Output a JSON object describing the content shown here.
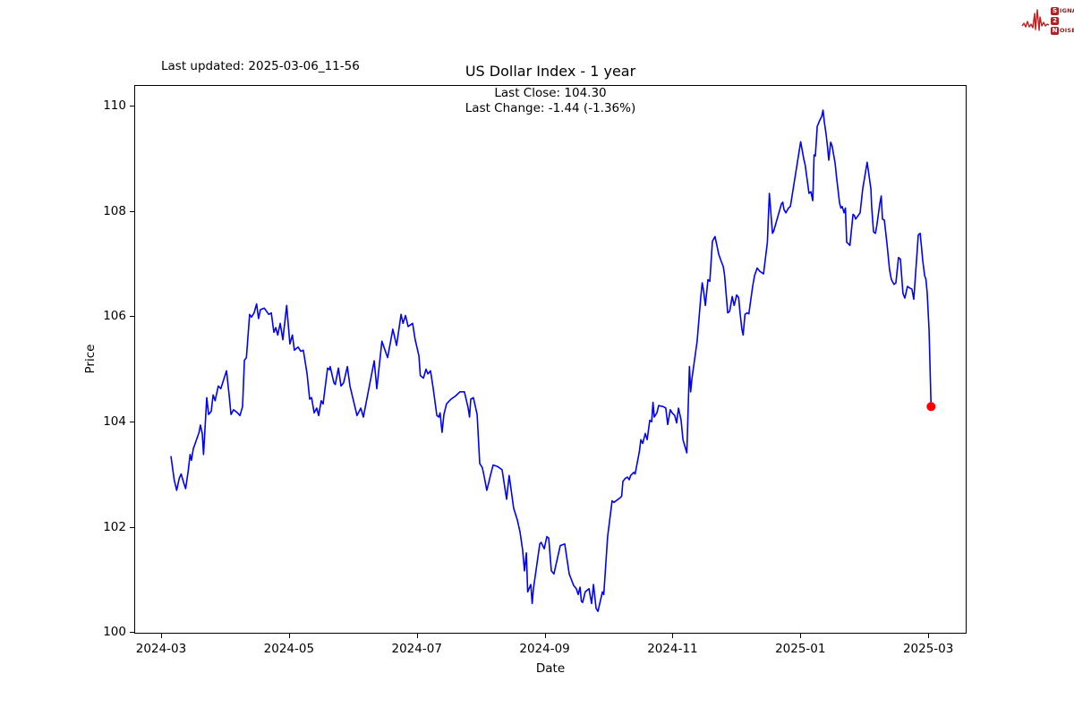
{
  "header": {
    "last_updated": "Last updated: 2025-03-06_11-56"
  },
  "logo": {
    "row1_initial": "S",
    "row1_rest": "IGNAL",
    "row2_initial": "2",
    "row2_rest": "",
    "row3_initial": "N",
    "row3_rest": "OISE",
    "wave_color": "#c41e1e",
    "square_color": "#b32024",
    "text_color": "#8c1a1a"
  },
  "chart_data": {
    "type": "line",
    "title": "US Dollar Index - 1 year",
    "subtitle_line1": "Last Close: 104.30",
    "subtitle_line2": "Last Change: -1.44 (-1.36%)",
    "xlabel": "Date",
    "ylabel": "Price",
    "grid": false,
    "legend": null,
    "x_unit": "months since 2024-03-01",
    "x_tick_labels": [
      "2024-03",
      "2024-05",
      "2024-07",
      "2024-09",
      "2024-11",
      "2025-01",
      "2025-03"
    ],
    "x_tick_positions_months": [
      0,
      2,
      4,
      6,
      8,
      10,
      12
    ],
    "y_tick_labels": [
      "100",
      "102",
      "104",
      "106",
      "108",
      "110"
    ],
    "y_tick_values": [
      100,
      102,
      104,
      106,
      108,
      110
    ],
    "xlim_months": [
      -0.42,
      12.6
    ],
    "ylim": [
      99.97,
      110.39
    ],
    "line_color": "#0000ff",
    "last_point_marker": {
      "x_months": 12.03,
      "price": 104.3,
      "color": "#ff0000"
    },
    "series": [
      {
        "name": "US Dollar Index",
        "color": "#0000ff",
        "points": [
          [
            0.14,
            103.36
          ],
          [
            0.19,
            102.91
          ],
          [
            0.23,
            102.71
          ],
          [
            0.27,
            102.94
          ],
          [
            0.3,
            103.02
          ],
          [
            0.34,
            102.85
          ],
          [
            0.37,
            102.74
          ],
          [
            0.41,
            103.08
          ],
          [
            0.44,
            103.39
          ],
          [
            0.46,
            103.28
          ],
          [
            0.49,
            103.5
          ],
          [
            0.53,
            103.64
          ],
          [
            0.58,
            103.81
          ],
          [
            0.6,
            103.95
          ],
          [
            0.63,
            103.79
          ],
          [
            0.65,
            103.39
          ],
          [
            0.7,
            104.47
          ],
          [
            0.73,
            104.15
          ],
          [
            0.77,
            104.21
          ],
          [
            0.8,
            104.52
          ],
          [
            0.83,
            104.41
          ],
          [
            0.88,
            104.69
          ],
          [
            0.92,
            104.64
          ],
          [
            1.01,
            104.98
          ],
          [
            1.05,
            104.52
          ],
          [
            1.08,
            104.15
          ],
          [
            1.12,
            104.24
          ],
          [
            1.18,
            104.18
          ],
          [
            1.22,
            104.13
          ],
          [
            1.26,
            104.3
          ],
          [
            1.29,
            105.18
          ],
          [
            1.32,
            105.23
          ],
          [
            1.37,
            106.05
          ],
          [
            1.4,
            106.0
          ],
          [
            1.44,
            106.08
          ],
          [
            1.48,
            106.25
          ],
          [
            1.51,
            105.97
          ],
          [
            1.54,
            106.14
          ],
          [
            1.6,
            106.17
          ],
          [
            1.67,
            106.05
          ],
          [
            1.71,
            106.08
          ],
          [
            1.75,
            105.71
          ],
          [
            1.78,
            105.8
          ],
          [
            1.81,
            105.66
          ],
          [
            1.85,
            105.88
          ],
          [
            1.89,
            105.57
          ],
          [
            1.95,
            106.22
          ],
          [
            2.0,
            105.49
          ],
          [
            2.04,
            105.66
          ],
          [
            2.07,
            105.37
          ],
          [
            2.13,
            105.43
          ],
          [
            2.17,
            105.35
          ],
          [
            2.21,
            105.37
          ],
          [
            2.27,
            104.92
          ],
          [
            2.31,
            104.44
          ],
          [
            2.34,
            104.47
          ],
          [
            2.38,
            104.18
          ],
          [
            2.42,
            104.27
          ],
          [
            2.45,
            104.13
          ],
          [
            2.49,
            104.41
          ],
          [
            2.52,
            104.35
          ],
          [
            2.59,
            105.03
          ],
          [
            2.62,
            105.0
          ],
          [
            2.63,
            105.06
          ],
          [
            2.69,
            104.75
          ],
          [
            2.71,
            104.72
          ],
          [
            2.76,
            105.03
          ],
          [
            2.8,
            104.69
          ],
          [
            2.84,
            104.75
          ],
          [
            2.9,
            105.06
          ],
          [
            2.94,
            104.69
          ],
          [
            3.05,
            104.13
          ],
          [
            3.11,
            104.27
          ],
          [
            3.15,
            104.1
          ],
          [
            3.32,
            105.17
          ],
          [
            3.36,
            104.64
          ],
          [
            3.44,
            105.54
          ],
          [
            3.53,
            105.23
          ],
          [
            3.61,
            105.77
          ],
          [
            3.67,
            105.46
          ],
          [
            3.74,
            106.05
          ],
          [
            3.77,
            105.88
          ],
          [
            3.81,
            106.03
          ],
          [
            3.85,
            105.82
          ],
          [
            3.92,
            105.88
          ],
          [
            3.96,
            105.57
          ],
          [
            4.02,
            105.26
          ],
          [
            4.04,
            104.89
          ],
          [
            4.09,
            104.84
          ],
          [
            4.13,
            105.01
          ],
          [
            4.16,
            104.92
          ],
          [
            4.2,
            104.98
          ],
          [
            4.24,
            104.66
          ],
          [
            4.3,
            104.13
          ],
          [
            4.33,
            104.1
          ],
          [
            4.35,
            104.18
          ],
          [
            4.38,
            103.81
          ],
          [
            4.41,
            104.15
          ],
          [
            4.45,
            104.35
          ],
          [
            4.52,
            104.44
          ],
          [
            4.59,
            104.5
          ],
          [
            4.66,
            104.58
          ],
          [
            4.73,
            104.58
          ],
          [
            4.79,
            104.27
          ],
          [
            4.81,
            104.1
          ],
          [
            4.83,
            104.44
          ],
          [
            4.87,
            104.47
          ],
          [
            4.93,
            104.15
          ],
          [
            4.97,
            103.22
          ],
          [
            5.01,
            103.14
          ],
          [
            5.04,
            102.97
          ],
          [
            5.08,
            102.71
          ],
          [
            5.11,
            102.85
          ],
          [
            5.14,
            103.0
          ],
          [
            5.18,
            103.19
          ],
          [
            5.25,
            103.16
          ],
          [
            5.32,
            103.1
          ],
          [
            5.39,
            102.54
          ],
          [
            5.43,
            102.99
          ],
          [
            5.5,
            102.37
          ],
          [
            5.56,
            102.14
          ],
          [
            5.6,
            101.92
          ],
          [
            5.64,
            101.58
          ],
          [
            5.67,
            101.18
          ],
          [
            5.7,
            101.52
          ],
          [
            5.72,
            100.78
          ],
          [
            5.77,
            100.92
          ],
          [
            5.79,
            100.56
          ],
          [
            5.81,
            100.84
          ],
          [
            5.91,
            101.69
          ],
          [
            5.93,
            101.72
          ],
          [
            5.98,
            101.6
          ],
          [
            6.02,
            101.83
          ],
          [
            6.05,
            101.8
          ],
          [
            6.09,
            101.18
          ],
          [
            6.13,
            101.12
          ],
          [
            6.23,
            101.66
          ],
          [
            6.3,
            101.69
          ],
          [
            6.37,
            101.12
          ],
          [
            6.44,
            100.9
          ],
          [
            6.48,
            100.84
          ],
          [
            6.51,
            100.73
          ],
          [
            6.54,
            100.87
          ],
          [
            6.56,
            100.6
          ],
          [
            6.58,
            100.58
          ],
          [
            6.62,
            100.78
          ],
          [
            6.68,
            100.84
          ],
          [
            6.72,
            100.56
          ],
          [
            6.75,
            100.92
          ],
          [
            6.79,
            100.47
          ],
          [
            6.82,
            100.41
          ],
          [
            6.89,
            100.78
          ],
          [
            6.91,
            100.73
          ],
          [
            6.97,
            101.83
          ],
          [
            7.04,
            102.51
          ],
          [
            7.07,
            102.48
          ],
          [
            7.17,
            102.57
          ],
          [
            7.19,
            102.6
          ],
          [
            7.21,
            102.88
          ],
          [
            7.25,
            102.94
          ],
          [
            7.28,
            102.96
          ],
          [
            7.31,
            102.91
          ],
          [
            7.33,
            102.99
          ],
          [
            7.38,
            103.05
          ],
          [
            7.4,
            103.02
          ],
          [
            7.45,
            103.33
          ],
          [
            7.47,
            103.47
          ],
          [
            7.49,
            103.67
          ],
          [
            7.52,
            103.6
          ],
          [
            7.56,
            103.79
          ],
          [
            7.59,
            103.67
          ],
          [
            7.63,
            104.04
          ],
          [
            7.66,
            104.01
          ],
          [
            7.68,
            104.38
          ],
          [
            7.7,
            104.1
          ],
          [
            7.74,
            104.18
          ],
          [
            7.77,
            104.32
          ],
          [
            7.84,
            104.3
          ],
          [
            7.88,
            104.27
          ],
          [
            7.91,
            103.96
          ],
          [
            7.95,
            104.24
          ],
          [
            7.98,
            104.18
          ],
          [
            8.02,
            104.13
          ],
          [
            8.05,
            103.99
          ],
          [
            8.08,
            104.27
          ],
          [
            8.12,
            104.04
          ],
          [
            8.15,
            103.67
          ],
          [
            8.21,
            103.42
          ],
          [
            8.25,
            105.06
          ],
          [
            8.27,
            104.58
          ],
          [
            8.29,
            104.83
          ],
          [
            8.37,
            105.54
          ],
          [
            8.43,
            106.4
          ],
          [
            8.45,
            106.65
          ],
          [
            8.47,
            106.51
          ],
          [
            8.5,
            106.22
          ],
          [
            8.54,
            106.71
          ],
          [
            8.57,
            106.68
          ],
          [
            8.61,
            107.44
          ],
          [
            8.65,
            107.53
          ],
          [
            8.71,
            107.19
          ],
          [
            8.75,
            107.05
          ],
          [
            8.78,
            106.96
          ],
          [
            8.8,
            106.79
          ],
          [
            8.85,
            106.08
          ],
          [
            8.88,
            106.11
          ],
          [
            8.92,
            106.39
          ],
          [
            8.95,
            106.22
          ],
          [
            8.99,
            106.42
          ],
          [
            9.02,
            106.37
          ],
          [
            9.04,
            106.11
          ],
          [
            9.07,
            105.77
          ],
          [
            9.09,
            105.66
          ],
          [
            9.12,
            106.05
          ],
          [
            9.15,
            106.08
          ],
          [
            9.18,
            106.06
          ],
          [
            9.24,
            106.59
          ],
          [
            9.27,
            106.79
          ],
          [
            9.31,
            106.93
          ],
          [
            9.35,
            106.87
          ],
          [
            9.41,
            106.82
          ],
          [
            9.47,
            107.42
          ],
          [
            9.5,
            108.35
          ],
          [
            9.55,
            107.59
          ],
          [
            9.57,
            107.64
          ],
          [
            9.69,
            108.15
          ],
          [
            9.71,
            108.18
          ],
          [
            9.73,
            108.04
          ],
          [
            9.76,
            107.98
          ],
          [
            9.8,
            108.07
          ],
          [
            9.83,
            108.1
          ],
          [
            9.99,
            109.33
          ],
          [
            10.04,
            109.0
          ],
          [
            10.06,
            108.89
          ],
          [
            10.12,
            108.35
          ],
          [
            10.15,
            108.38
          ],
          [
            10.18,
            108.21
          ],
          [
            10.2,
            109.08
          ],
          [
            10.22,
            109.06
          ],
          [
            10.25,
            109.62
          ],
          [
            10.29,
            109.74
          ],
          [
            10.32,
            109.81
          ],
          [
            10.34,
            109.93
          ],
          [
            10.36,
            109.71
          ],
          [
            10.39,
            109.46
          ],
          [
            10.41,
            109.23
          ],
          [
            10.43,
            108.98
          ],
          [
            10.46,
            109.32
          ],
          [
            10.48,
            109.26
          ],
          [
            10.53,
            108.92
          ],
          [
            10.55,
            108.67
          ],
          [
            10.6,
            108.16
          ],
          [
            10.62,
            108.07
          ],
          [
            10.64,
            108.1
          ],
          [
            10.67,
            107.98
          ],
          [
            10.69,
            108.07
          ],
          [
            10.71,
            107.42
          ],
          [
            10.74,
            107.39
          ],
          [
            10.76,
            107.36
          ],
          [
            10.81,
            107.95
          ],
          [
            10.83,
            107.93
          ],
          [
            10.85,
            107.86
          ],
          [
            10.92,
            107.98
          ],
          [
            10.96,
            108.43
          ],
          [
            11.02,
            108.86
          ],
          [
            11.03,
            108.94
          ],
          [
            11.09,
            108.43
          ],
          [
            11.1,
            108.1
          ],
          [
            11.13,
            107.62
          ],
          [
            11.16,
            107.59
          ],
          [
            11.18,
            107.73
          ],
          [
            11.23,
            108.16
          ],
          [
            11.25,
            108.3
          ],
          [
            11.27,
            107.86
          ],
          [
            11.3,
            107.84
          ],
          [
            11.34,
            107.4
          ],
          [
            11.38,
            106.9
          ],
          [
            11.41,
            106.71
          ],
          [
            11.45,
            106.62
          ],
          [
            11.48,
            106.65
          ],
          [
            11.52,
            107.13
          ],
          [
            11.55,
            107.1
          ],
          [
            11.59,
            106.45
          ],
          [
            11.62,
            106.36
          ],
          [
            11.66,
            106.58
          ],
          [
            11.7,
            106.55
          ],
          [
            11.73,
            106.53
          ],
          [
            11.76,
            106.34
          ],
          [
            11.83,
            107.56
          ],
          [
            11.86,
            107.59
          ],
          [
            11.88,
            107.33
          ],
          [
            11.9,
            107.07
          ],
          [
            11.93,
            106.79
          ],
          [
            11.95,
            106.71
          ],
          [
            11.97,
            106.45
          ],
          [
            12.0,
            105.74
          ],
          [
            12.03,
            104.3
          ]
        ]
      }
    ]
  }
}
